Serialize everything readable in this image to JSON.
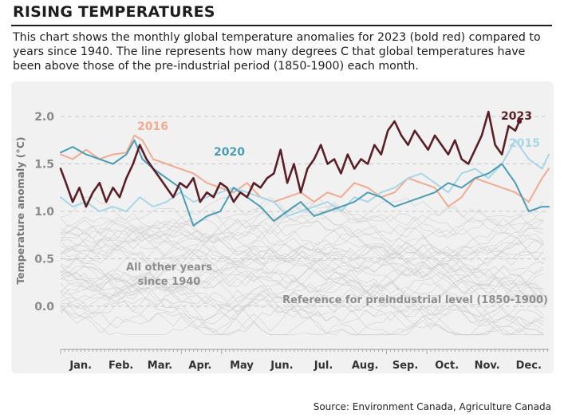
{
  "header": {
    "title": "RISING TEMPERATURES",
    "subtitle": "This chart shows the monthly global temperature anomalies for 2023 (bold red) compared to years since 1940. The line represents how many degrees C that global temperatures have been above those of the pre-industrial period (1850-1900) each month."
  },
  "source": "Source: Environment Canada, Agriculture Canada",
  "colors": {
    "y2023": "#5a1f26",
    "y2016": "#f0ab91",
    "y2020": "#4a9db5",
    "y2015": "#a8d7e6",
    "other": "#cdcdcd",
    "panel": "#f1f1f1",
    "label_grey": "#8a8a8a"
  },
  "chart_data": {
    "type": "line",
    "title": "",
    "xlabel": "",
    "ylabel": "Temperature anomaly (°C)",
    "ylim": [
      -0.3,
      2.2
    ],
    "yticks": [
      "2.0",
      "1.5",
      "1.0",
      "0.5",
      "0.0"
    ],
    "ytick_values": [
      2.0,
      1.5,
      1.0,
      0.5,
      0.0
    ],
    "grid": "dashed horizontal",
    "x_range": [
      1,
      365
    ],
    "months": [
      "Jan.",
      "Feb.",
      "Mar.",
      "Apr.",
      "May",
      "Jun.",
      "Jul.",
      "Aug.",
      "Sep.",
      "Oct.",
      "Nov.",
      "Dec."
    ],
    "month_day": [
      16,
      46,
      75,
      105,
      136,
      166,
      197,
      228,
      258,
      289,
      319,
      350
    ],
    "series": [
      {
        "name": "2016",
        "key": "y2016",
        "label": "2016",
        "x": [
          1,
          10,
          20,
          30,
          40,
          50,
          56,
          62,
          70,
          80,
          90,
          100,
          110,
          120,
          130,
          140,
          150,
          160,
          170,
          180,
          190,
          200,
          210,
          220,
          230,
          240,
          250,
          260,
          270,
          280,
          290,
          300,
          310,
          320,
          330,
          340,
          350,
          360,
          365
        ],
        "y": [
          1.6,
          1.55,
          1.65,
          1.55,
          1.6,
          1.62,
          1.8,
          1.75,
          1.55,
          1.5,
          1.45,
          1.4,
          1.3,
          1.25,
          1.2,
          1.3,
          1.15,
          1.1,
          1.15,
          1.2,
          1.1,
          1.2,
          1.15,
          1.3,
          1.25,
          1.15,
          1.2,
          1.35,
          1.3,
          1.25,
          1.05,
          1.15,
          1.35,
          1.3,
          1.25,
          1.2,
          1.1,
          1.35,
          1.45
        ]
      },
      {
        "name": "2015",
        "key": "y2015",
        "label": "2015",
        "x": [
          1,
          10,
          20,
          30,
          40,
          50,
          60,
          70,
          80,
          90,
          100,
          110,
          120,
          130,
          140,
          150,
          160,
          170,
          180,
          190,
          200,
          210,
          220,
          230,
          240,
          250,
          260,
          270,
          280,
          290,
          300,
          310,
          320,
          330,
          340,
          350,
          360,
          365
        ],
        "y": [
          1.15,
          1.05,
          1.1,
          1.0,
          1.05,
          1.0,
          1.15,
          1.05,
          1.1,
          1.2,
          1.1,
          1.15,
          1.2,
          1.25,
          1.2,
          1.15,
          1.1,
          0.95,
          1.0,
          1.05,
          1.1,
          1.0,
          1.15,
          1.1,
          1.2,
          1.25,
          1.35,
          1.4,
          1.3,
          1.2,
          1.4,
          1.45,
          1.35,
          1.5,
          1.75,
          1.55,
          1.45,
          1.6
        ]
      },
      {
        "name": "2020",
        "key": "y2020",
        "label": "2020",
        "x": [
          1,
          10,
          20,
          30,
          40,
          50,
          56,
          62,
          70,
          80,
          90,
          100,
          110,
          120,
          130,
          140,
          150,
          160,
          170,
          180,
          190,
          200,
          210,
          220,
          230,
          240,
          250,
          260,
          270,
          280,
          290,
          300,
          310,
          320,
          330,
          340,
          350,
          360,
          365
        ],
        "y": [
          1.62,
          1.68,
          1.6,
          1.55,
          1.5,
          1.6,
          1.75,
          1.55,
          1.45,
          1.35,
          1.25,
          0.85,
          0.95,
          1.0,
          1.25,
          1.15,
          1.05,
          0.9,
          1.0,
          1.1,
          0.95,
          1.0,
          1.05,
          1.1,
          1.2,
          1.15,
          1.05,
          1.1,
          1.15,
          1.2,
          1.3,
          1.25,
          1.35,
          1.4,
          1.5,
          1.3,
          1.0,
          1.05,
          1.05
        ]
      },
      {
        "name": "2023",
        "key": "y2023",
        "label": "2023",
        "x": [
          1,
          5,
          10,
          15,
          20,
          25,
          30,
          35,
          40,
          45,
          50,
          55,
          60,
          65,
          70,
          75,
          80,
          85,
          90,
          95,
          100,
          105,
          110,
          115,
          120,
          125,
          130,
          135,
          140,
          145,
          150,
          155,
          160,
          165,
          170,
          175,
          180,
          185,
          190,
          195,
          200,
          205,
          210,
          215,
          220,
          225,
          230,
          235,
          240,
          245,
          250,
          255,
          260,
          265,
          270,
          275,
          280,
          285,
          290,
          295,
          300,
          305,
          310,
          315,
          320,
          325,
          330,
          335,
          340,
          343
        ],
        "y": [
          1.45,
          1.3,
          1.1,
          1.25,
          1.05,
          1.2,
          1.3,
          1.1,
          1.25,
          1.15,
          1.35,
          1.5,
          1.7,
          1.55,
          1.45,
          1.35,
          1.25,
          1.15,
          1.3,
          1.25,
          1.35,
          1.1,
          1.2,
          1.15,
          1.3,
          1.25,
          1.1,
          1.2,
          1.15,
          1.3,
          1.25,
          1.35,
          1.4,
          1.65,
          1.3,
          1.5,
          1.2,
          1.45,
          1.55,
          1.7,
          1.5,
          1.55,
          1.4,
          1.6,
          1.45,
          1.55,
          1.5,
          1.7,
          1.6,
          1.85,
          1.95,
          1.8,
          1.7,
          1.85,
          1.75,
          1.65,
          1.8,
          1.7,
          1.6,
          1.75,
          1.55,
          1.5,
          1.65,
          1.8,
          2.05,
          1.7,
          1.6,
          1.9,
          1.85,
          1.95
        ]
      }
    ],
    "other_years_label": [
      "All other years",
      "since 1940"
    ],
    "reference_label": "Reference for preindustrial level (1850-1900)"
  }
}
